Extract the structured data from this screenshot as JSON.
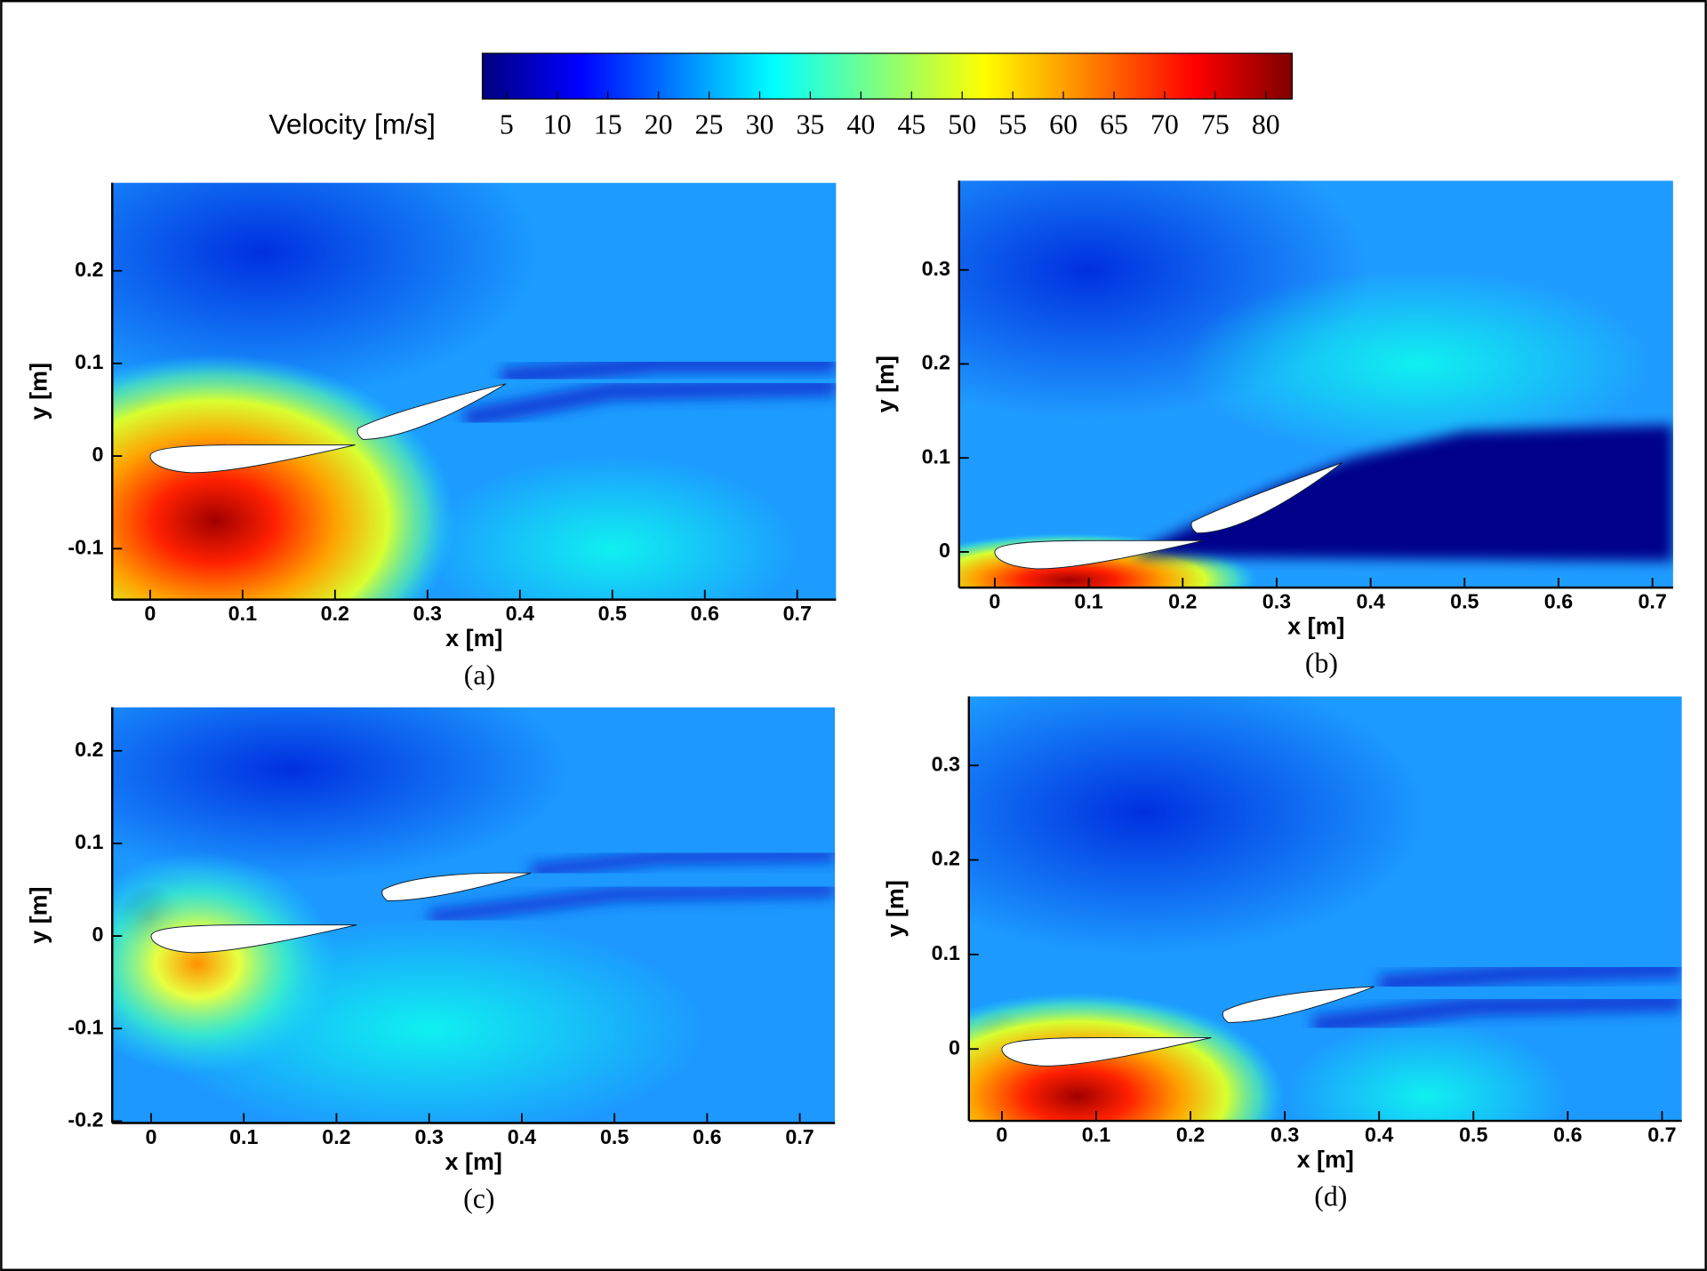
{
  "colorbar": {
    "label": "Velocity [m/s]",
    "lim": [
      2.6,
      82.6
    ],
    "ticks": [
      5,
      10,
      15,
      20,
      25,
      30,
      35,
      40,
      45,
      50,
      55,
      60,
      65,
      70,
      75,
      80
    ]
  },
  "chart_data": [
    {
      "type": "contour",
      "caption": "(a)",
      "xlabel": "x [m]",
      "ylabel": "y [m]",
      "xlim": [
        -0.041,
        0.742
      ],
      "ylim": [
        -0.155,
        0.295
      ],
      "xticks": [
        0,
        0.1,
        0.2,
        0.3,
        0.4,
        0.5,
        0.6,
        0.7
      ],
      "yticks": [
        -0.1,
        0,
        0.1,
        0.2
      ]
    },
    {
      "type": "contour",
      "caption": "(b)",
      "xlabel": "x [m]",
      "ylabel": "y [m]",
      "xlim": [
        -0.038,
        0.722
      ],
      "ylim": [
        -0.038,
        0.395
      ],
      "xticks": [
        0,
        0.1,
        0.2,
        0.3,
        0.4,
        0.5,
        0.6,
        0.7
      ],
      "yticks": [
        0,
        0.1,
        0.2,
        0.3
      ]
    },
    {
      "type": "contour",
      "caption": "(c)",
      "xlabel": "x [m]",
      "ylabel": "y [m]",
      "xlim": [
        -0.042,
        0.738
      ],
      "ylim": [
        -0.202,
        0.247
      ],
      "xticks": [
        0,
        0.1,
        0.2,
        0.3,
        0.4,
        0.5,
        0.6,
        0.7
      ],
      "yticks": [
        -0.2,
        -0.1,
        0,
        0.1,
        0.2
      ]
    },
    {
      "type": "contour",
      "caption": "(d)",
      "xlabel": "x [m]",
      "ylabel": "y [m]",
      "xlim": [
        -0.035,
        0.721
      ],
      "ylim": [
        -0.076,
        0.373
      ],
      "xticks": [
        0,
        0.1,
        0.2,
        0.3,
        0.4,
        0.5,
        0.6,
        0.7
      ],
      "yticks": [
        0,
        0.1,
        0.2,
        0.3
      ]
    }
  ]
}
